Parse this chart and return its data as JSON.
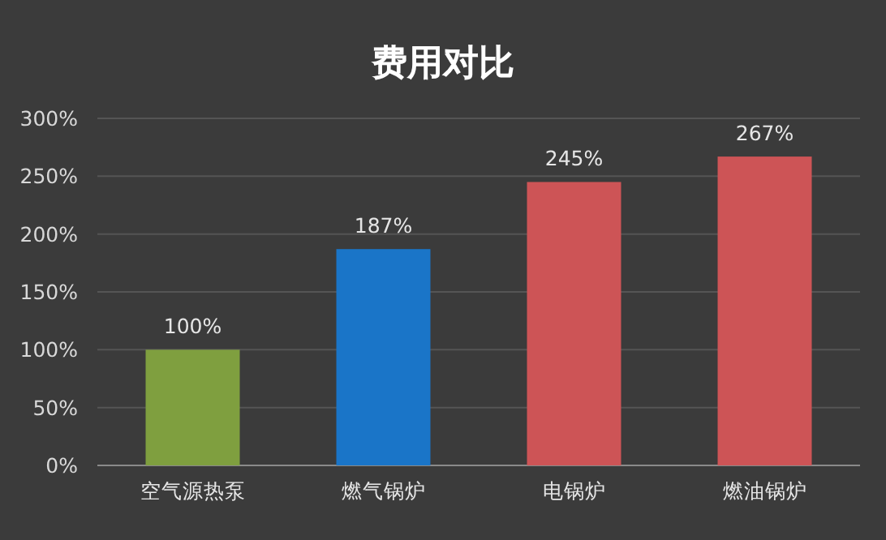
{
  "chart_data": {
    "type": "bar",
    "title": "费用对比",
    "categories": [
      "空气源热泵",
      "燃气锅炉",
      "电锅炉",
      "燃油锅炉"
    ],
    "values": [
      100,
      187,
      245,
      267
    ],
    "colors": [
      "#7f9f3f",
      "#1a75c8",
      "#cd5456",
      "#cd5456"
    ],
    "value_labels": [
      "100%",
      "187%",
      "245%",
      "267%"
    ],
    "ylim": [
      0,
      300
    ],
    "yticks": [
      {
        "value": 0,
        "label": "0%"
      },
      {
        "value": 50,
        "label": "50%"
      },
      {
        "value": 100,
        "label": "100%"
      },
      {
        "value": 150,
        "label": "150%"
      },
      {
        "value": 200,
        "label": "200%"
      },
      {
        "value": 250,
        "label": "250%"
      },
      {
        "value": 300,
        "label": "300%"
      }
    ],
    "grid": "y"
  }
}
